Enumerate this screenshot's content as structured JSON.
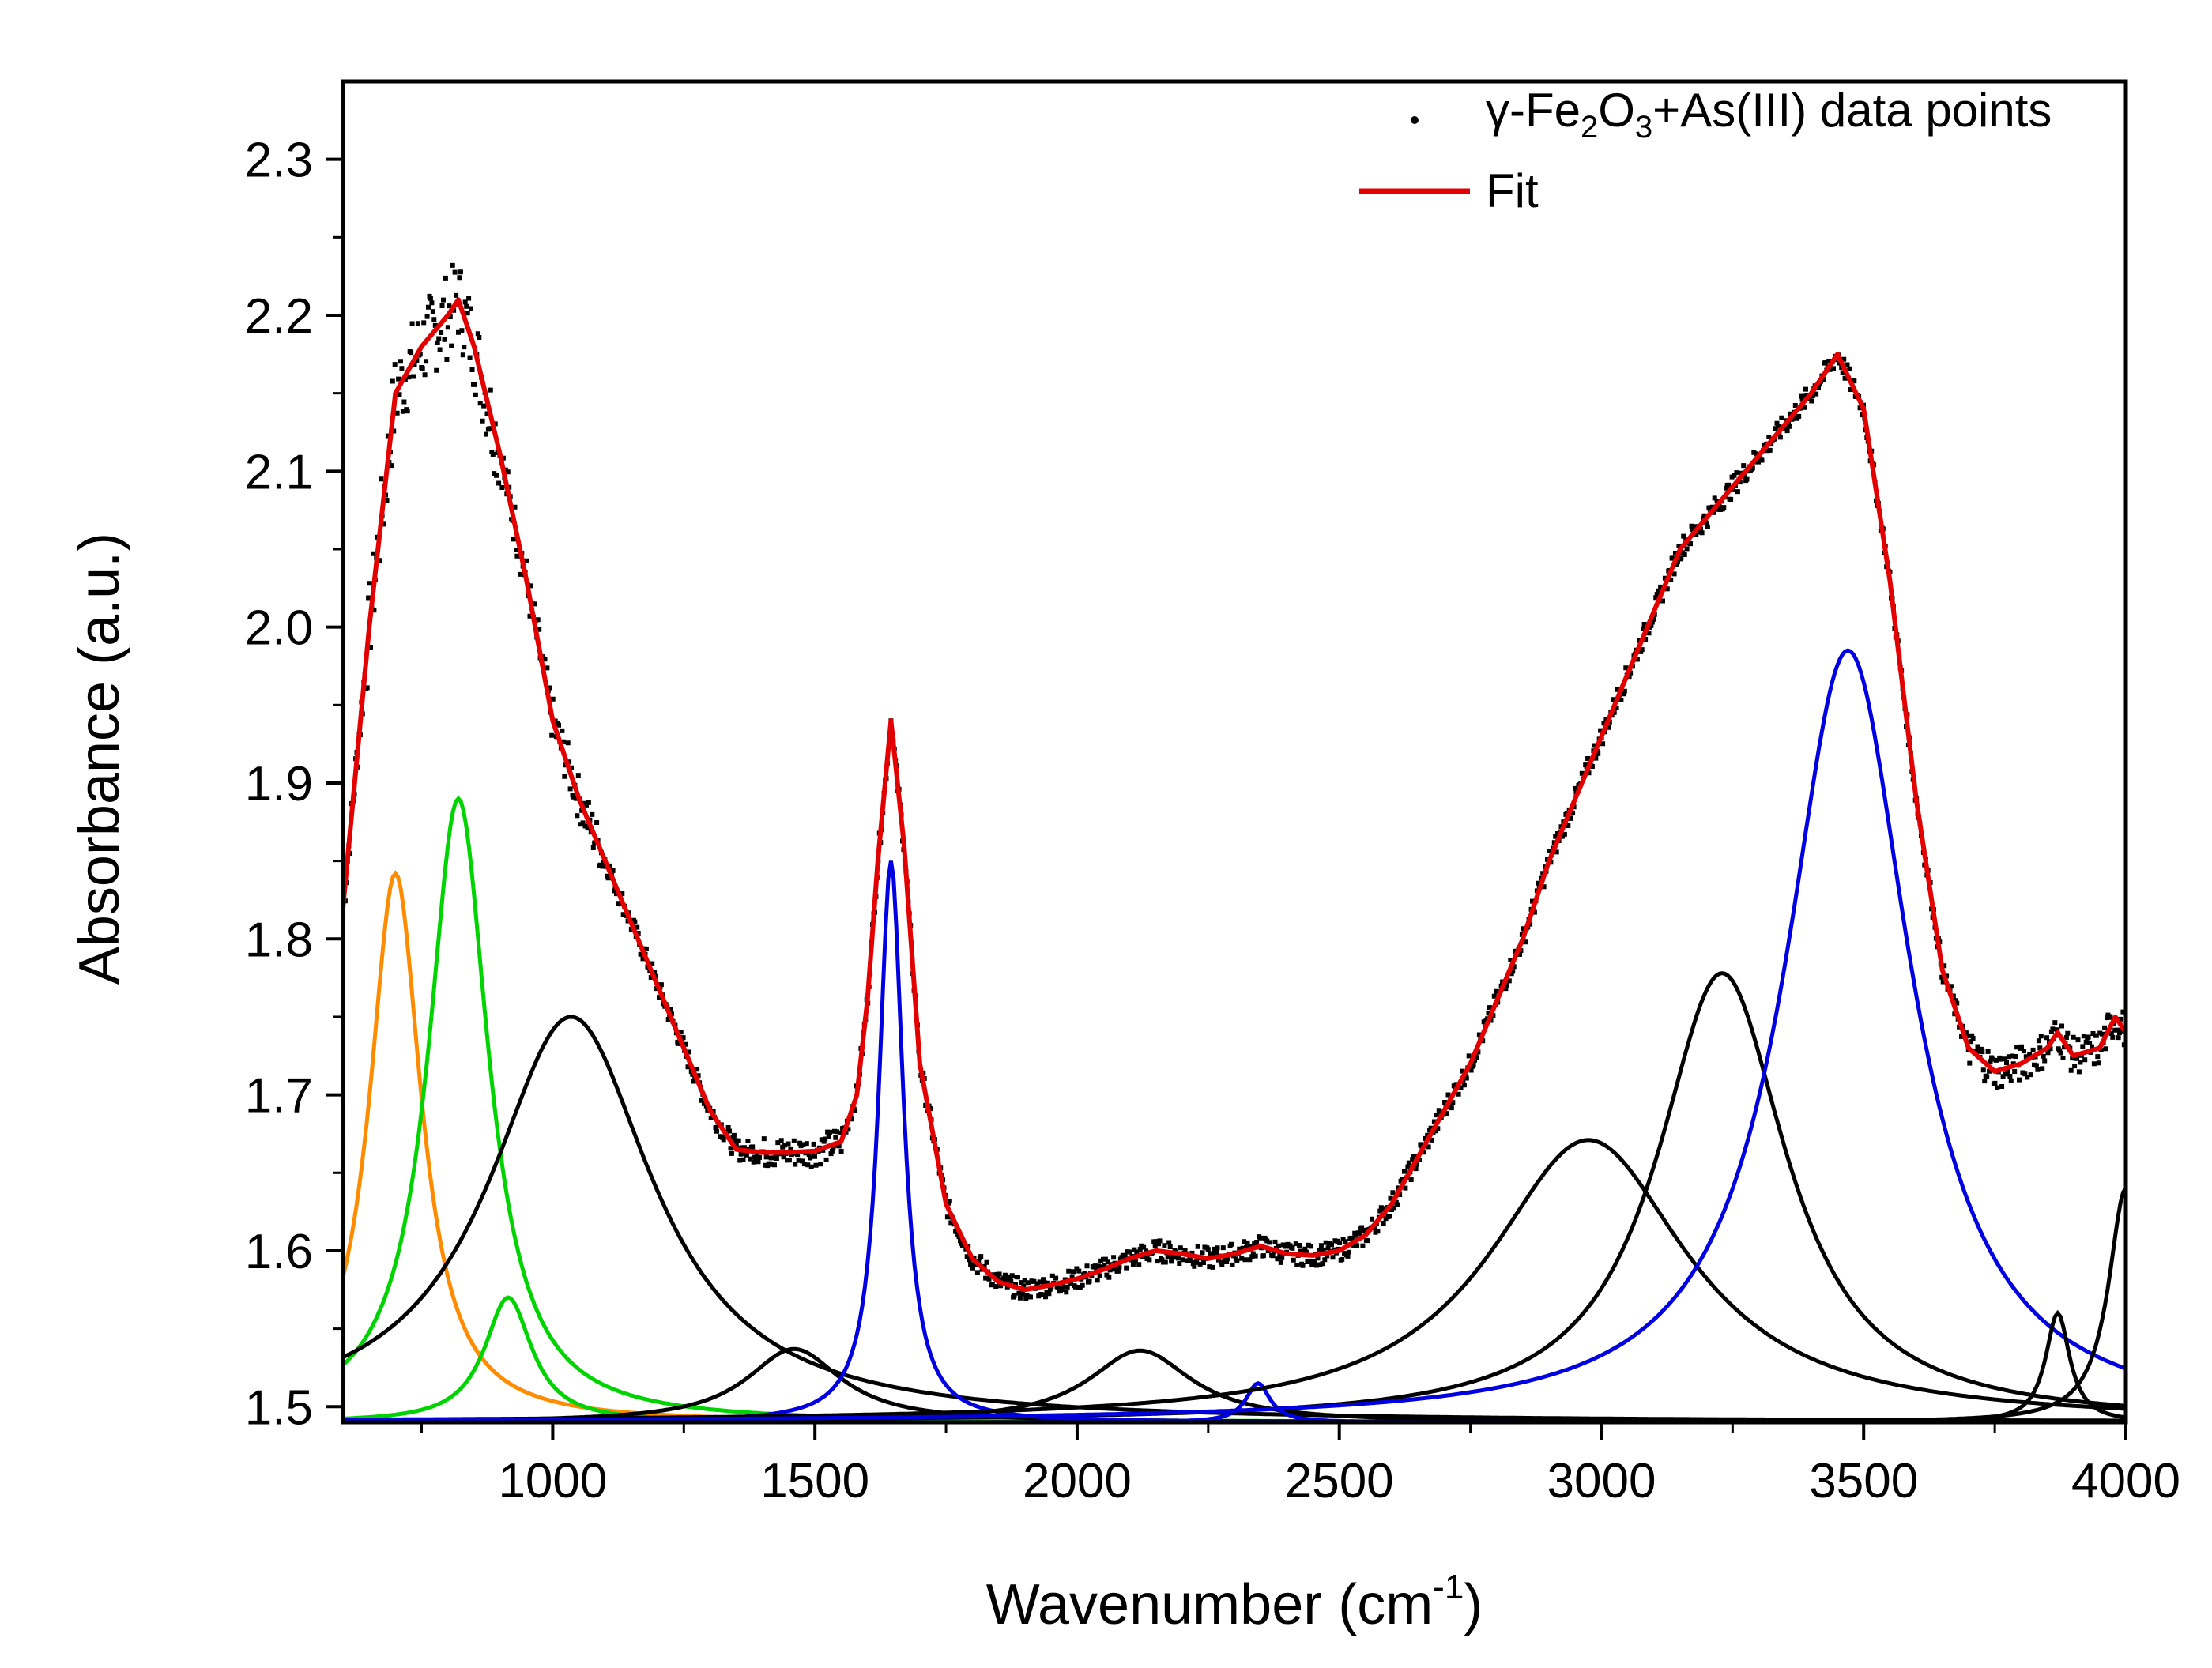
{
  "chart_data": {
    "type": "line",
    "xlabel": "Wavenumber (cm",
    "xlabel_sup": "-1",
    "xlabel_close": ")",
    "ylabel": "Absorbance (a.u.)",
    "xlim": [
      600,
      4000
    ],
    "ylim": [
      1.49,
      2.35
    ],
    "x_ticks": [
      {
        "value": 1000,
        "label": "1000"
      },
      {
        "value": 1500,
        "label": "1500"
      },
      {
        "value": 2000,
        "label": "2000"
      },
      {
        "value": 2500,
        "label": "2500"
      },
      {
        "value": 3000,
        "label": "3000"
      },
      {
        "value": 3500,
        "label": "3500"
      },
      {
        "value": 4000,
        "label": "4000"
      }
    ],
    "x_minor_ticks": [
      750,
      1250,
      1750,
      2250,
      2750,
      3250,
      3750
    ],
    "y_ticks": [
      {
        "value": 1.5,
        "label": "1.5"
      },
      {
        "value": 1.6,
        "label": "1.6"
      },
      {
        "value": 1.7,
        "label": "1.7"
      },
      {
        "value": 1.8,
        "label": "1.8"
      },
      {
        "value": 1.9,
        "label": "1.9"
      },
      {
        "value": 2.0,
        "label": "2.0"
      },
      {
        "value": 2.1,
        "label": "2.1"
      },
      {
        "value": 2.2,
        "label": "2.2"
      },
      {
        "value": 2.3,
        "label": "2.3"
      }
    ],
    "y_minor_ticks": [
      1.55,
      1.65,
      1.75,
      1.85,
      1.95,
      2.05,
      2.15,
      2.25
    ],
    "baseline": 1.49,
    "legend": {
      "position": "top-right",
      "entries": [
        {
          "marker": "dot",
          "color": "#000000",
          "parts": [
            {
              "t": "γ-Fe",
              "s": "n"
            },
            {
              "t": "2",
              "s": "sub"
            },
            {
              "t": "O",
              "s": "n"
            },
            {
              "t": "3",
              "s": "sub"
            },
            {
              "t": "+As(III) data points",
              "s": "n"
            }
          ]
        },
        {
          "marker": "line",
          "color": "#e30000",
          "parts": [
            {
              "t": "Fit",
              "s": "n"
            }
          ]
        }
      ]
    },
    "components": [
      {
        "name": "peak-700",
        "color": "#ff8c00",
        "center": 700,
        "height": 0.352,
        "hwhm": 60
      },
      {
        "name": "peak-820",
        "color": "#00d400",
        "center": 820,
        "height": 0.4,
        "hwhm": 70
      },
      {
        "name": "peak-915",
        "color": "#00d400",
        "center": 915,
        "height": 0.08,
        "hwhm": 55
      },
      {
        "name": "peak-1035",
        "color": "#000000",
        "center": 1035,
        "height": 0.26,
        "hwhm": 190
      },
      {
        "name": "peak-1460",
        "color": "#000000",
        "center": 1460,
        "height": 0.047,
        "hwhm": 110
      },
      {
        "name": "peak-1645",
        "color": "#0000e0",
        "center": 1645,
        "height": 0.36,
        "hwhm": 28
      },
      {
        "name": "peak-2120",
        "color": "#000000",
        "center": 2120,
        "height": 0.046,
        "hwhm": 120
      },
      {
        "name": "peak-2345",
        "color": "#0000e0",
        "center": 2345,
        "height": 0.025,
        "hwhm": 28
      },
      {
        "name": "peak-2975",
        "color": "#000000",
        "center": 2975,
        "height": 0.181,
        "hwhm": 230
      },
      {
        "name": "peak-3230",
        "color": "#000000",
        "center": 3230,
        "height": 0.288,
        "hwhm": 150
      },
      {
        "name": "peak-3470",
        "color": "#0000e0",
        "center": 3470,
        "height": 0.495,
        "hwhm": 145
      },
      {
        "name": "peak-3870",
        "color": "#000000",
        "center": 3870,
        "height": 0.07,
        "hwhm": 28
      },
      {
        "name": "peak-4000",
        "color": "#000000",
        "center": 4000,
        "height": 0.15,
        "hwhm": 40
      }
    ],
    "fit": {
      "color": "#e30000",
      "x": [
        600,
        650,
        700,
        750,
        800,
        820,
        850,
        900,
        950,
        1000,
        1050,
        1100,
        1150,
        1200,
        1250,
        1300,
        1350,
        1400,
        1450,
        1500,
        1550,
        1580,
        1600,
        1620,
        1645,
        1670,
        1700,
        1750,
        1800,
        1850,
        1900,
        1950,
        2000,
        2050,
        2100,
        2150,
        2200,
        2250,
        2300,
        2350,
        2400,
        2450,
        2500,
        2550,
        2600,
        2650,
        2700,
        2750,
        2800,
        2850,
        2900,
        2950,
        3000,
        3050,
        3100,
        3150,
        3200,
        3250,
        3300,
        3350,
        3400,
        3450,
        3500,
        3550,
        3600,
        3650,
        3700,
        3750,
        3800,
        3850,
        3870,
        3900,
        3950,
        3980,
        4000
      ],
      "y": [
        1.82,
        2.0,
        2.15,
        2.18,
        2.2,
        2.21,
        2.18,
        2.11,
        2.03,
        1.94,
        1.89,
        1.85,
        1.81,
        1.77,
        1.73,
        1.69,
        1.665,
        1.663,
        1.663,
        1.664,
        1.67,
        1.7,
        1.76,
        1.85,
        1.94,
        1.86,
        1.72,
        1.63,
        1.595,
        1.58,
        1.575,
        1.578,
        1.582,
        1.588,
        1.595,
        1.6,
        1.598,
        1.595,
        1.598,
        1.603,
        1.598,
        1.597,
        1.6,
        1.61,
        1.63,
        1.66,
        1.69,
        1.72,
        1.76,
        1.8,
        1.85,
        1.89,
        1.93,
        1.97,
        2.01,
        2.05,
        2.07,
        2.09,
        2.11,
        2.13,
        2.15,
        2.175,
        2.14,
        2.03,
        1.89,
        1.78,
        1.73,
        1.715,
        1.72,
        1.73,
        1.74,
        1.725,
        1.73,
        1.75,
        1.74
      ]
    }
  }
}
